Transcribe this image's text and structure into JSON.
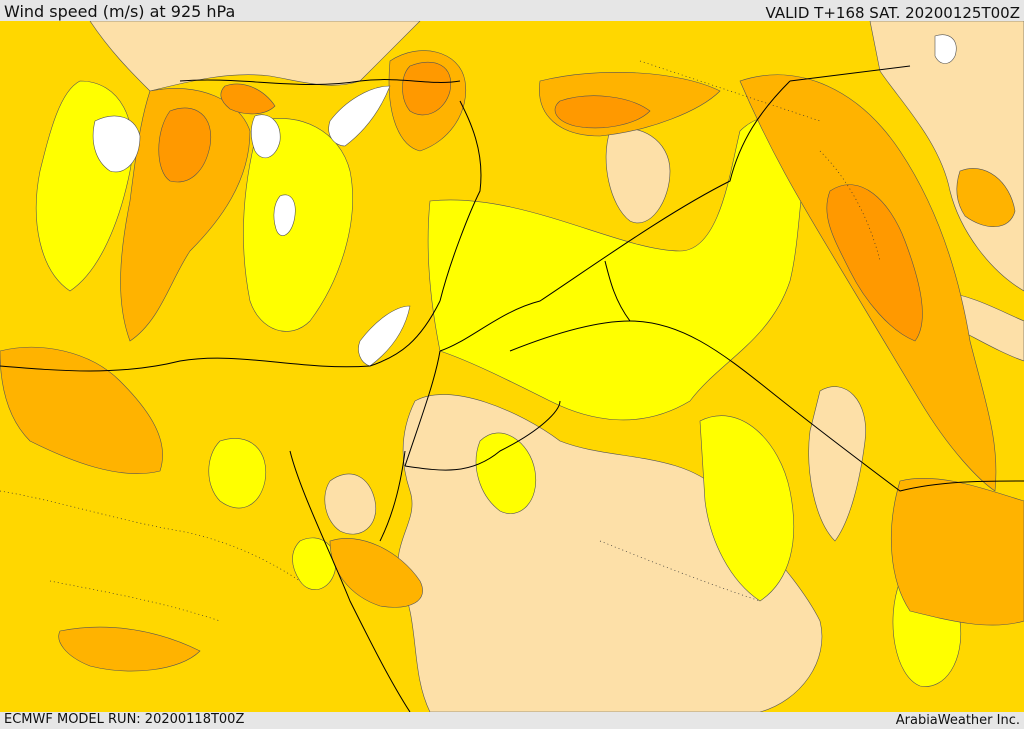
{
  "header": {
    "title": "Wind speed (m/s) at 925 hPa",
    "valid": "VALID T+168 SAT. 20200125T00Z"
  },
  "footer": {
    "model_run": "ECMWF MODEL RUN: 20200118T00Z",
    "credit": "ArabiaWeather Inc."
  },
  "colors": {
    "calm": "#ffffff",
    "light": "#fde0a8",
    "lowmid": "#ffff00",
    "mid": "#ffd700",
    "high": "#ffb300",
    "higher": "#ff9900",
    "peak": "#e8731d",
    "border": "#000000"
  }
}
